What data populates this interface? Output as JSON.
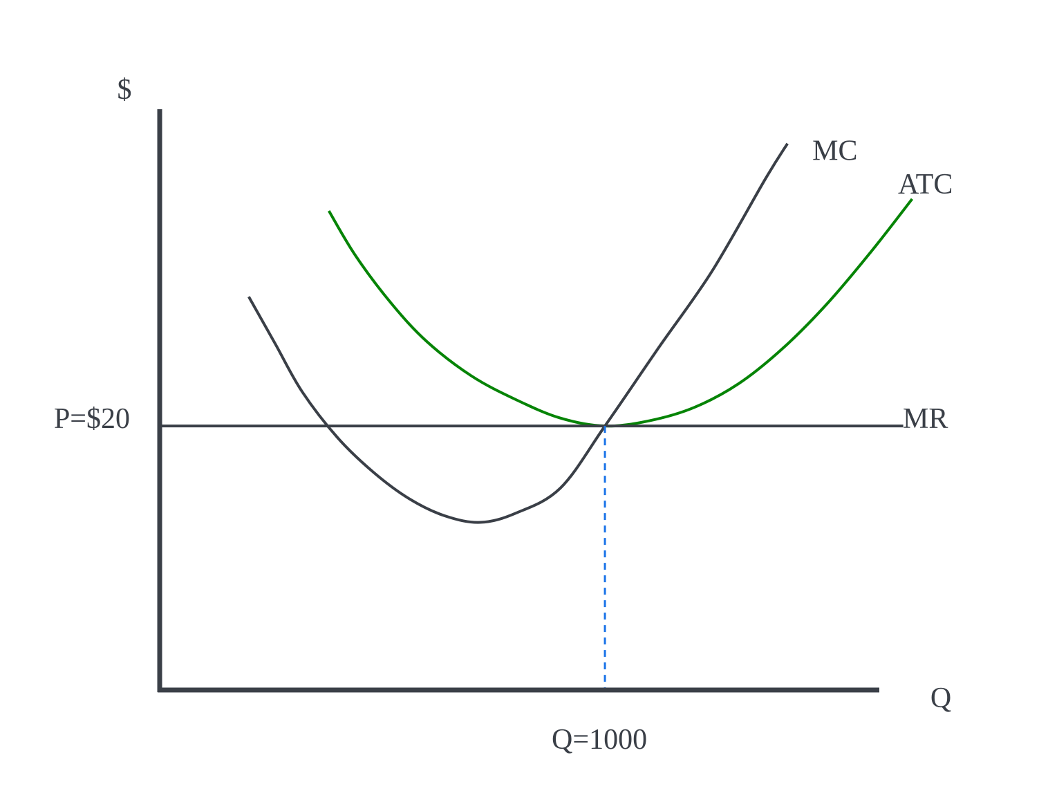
{
  "chart_data": {
    "type": "line",
    "title": "",
    "ylabel": "$",
    "xlabel": "Q",
    "xlim": [
      0,
      1700
    ],
    "ylim": [
      0,
      44
    ],
    "series": [
      {
        "name": "MC",
        "label": "MC",
        "color": "#3a3f47",
        "x": [
          200,
          260,
          320,
          400,
          480,
          560,
          640,
          720,
          800,
          900,
          1000,
          1120,
          1240,
          1360,
          1410
        ],
        "y": [
          29.8,
          26.2,
          22.6,
          19.1,
          16.5,
          14.5,
          13.2,
          12.7,
          13.4,
          15.3,
          20.0,
          25.9,
          31.7,
          38.7,
          41.4
        ]
      },
      {
        "name": "ATC",
        "label": "ATC",
        "color": "#068406",
        "x": [
          380,
          440,
          520,
          600,
          700,
          800,
          900,
          1000,
          1100,
          1200,
          1300,
          1400,
          1500,
          1600,
          1690
        ],
        "y": [
          36.3,
          32.9,
          29.3,
          26.4,
          23.8,
          22.0,
          20.6,
          20.0,
          20.4,
          21.4,
          23.2,
          25.9,
          29.3,
          33.3,
          37.2
        ]
      },
      {
        "name": "MR",
        "label": "MR",
        "color": "#3a3f47",
        "x": [
          0,
          1670
        ],
        "y": [
          20,
          20
        ]
      }
    ],
    "annotations": {
      "price_label": "P=$20",
      "price_value": 20,
      "quantity_label": "Q=1000",
      "quantity_value": 1000,
      "atc_label_color": "#0b8578",
      "guide_color": "#1a73e8"
    }
  }
}
